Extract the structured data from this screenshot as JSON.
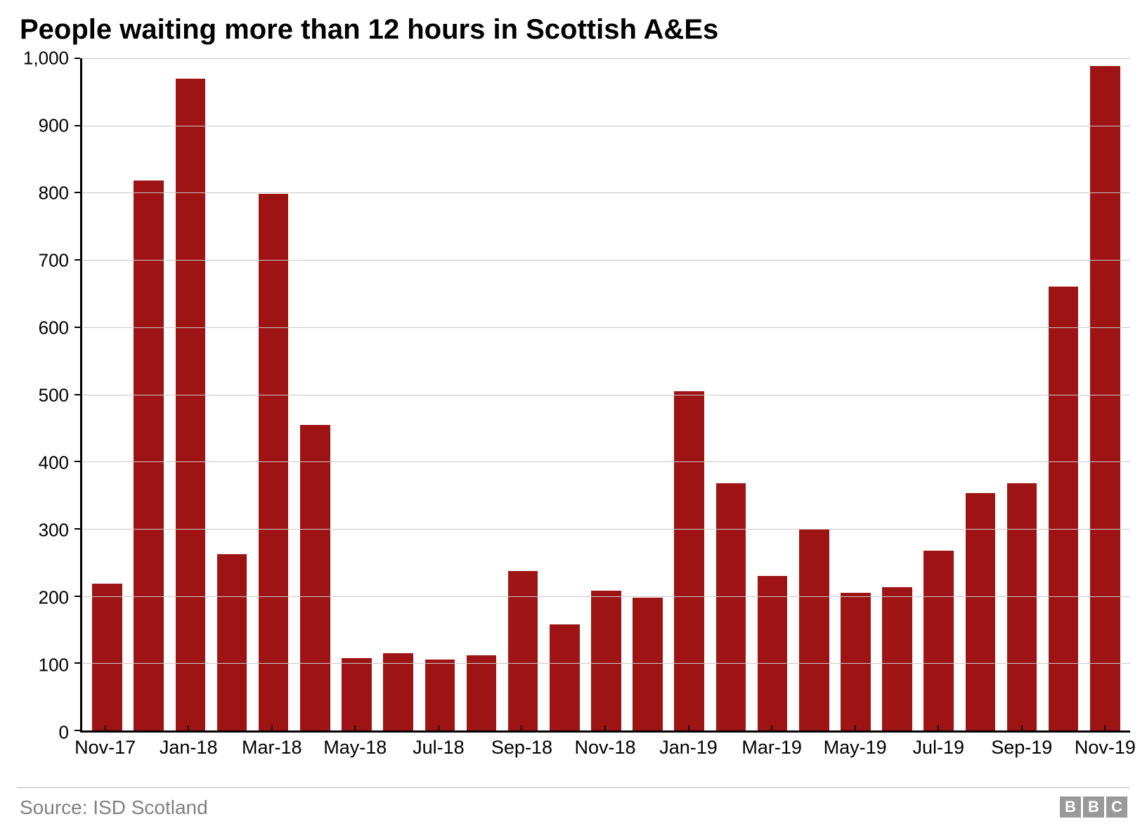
{
  "chart": {
    "type": "bar",
    "title": "People waiting more than 12 hours in Scottish A&Es",
    "title_fontsize": 40,
    "title_fontweight": 700,
    "background_color": "#ffffff",
    "bar_color": "#9e1414",
    "grid_color": "#c7c7c7",
    "axis_color": "#000000",
    "ylim": [
      0,
      1000
    ],
    "ytick_step": 100,
    "yticks": [
      0,
      100,
      200,
      300,
      400,
      500,
      600,
      700,
      800,
      900,
      1000
    ],
    "ytick_labels": [
      "0",
      "100",
      "200",
      "300",
      "400",
      "500",
      "600",
      "700",
      "800",
      "900",
      "1,000"
    ],
    "ylabel_fontsize": 26,
    "xlabel_fontsize": 27,
    "bar_width_ratio": 0.72,
    "categories": [
      "Nov-17",
      "Dec-17",
      "Jan-18",
      "Feb-18",
      "Mar-18",
      "Apr-18",
      "May-18",
      "Jun-18",
      "Jul-18",
      "Aug-18",
      "Sep-18",
      "Oct-18",
      "Nov-18",
      "Dec-18",
      "Jan-19",
      "Feb-19",
      "Mar-19",
      "Apr-19",
      "May-19",
      "Jun-19",
      "Jul-19",
      "Aug-19",
      "Sep-19",
      "Oct-19",
      "Nov-19"
    ],
    "values": [
      218,
      818,
      970,
      262,
      798,
      455,
      108,
      115,
      106,
      112,
      237,
      158,
      208,
      198,
      505,
      368,
      230,
      300,
      205,
      213,
      268,
      353,
      368,
      660,
      988
    ],
    "x_tick_indices": [
      0,
      2,
      4,
      6,
      8,
      10,
      12,
      14,
      16,
      18,
      20,
      22,
      24
    ],
    "x_tick_labels": [
      "Nov-17",
      "Jan-18",
      "Mar-18",
      "May-18",
      "Jul-18",
      "Sep-18",
      "Nov-18",
      "Jan-19",
      "Mar-19",
      "May-19",
      "Jul-19",
      "Sep-19",
      "Nov-19"
    ]
  },
  "footer": {
    "source": "Source: ISD Scotland",
    "source_color": "#808080",
    "source_fontsize": 28,
    "logo_letters": [
      "B",
      "B",
      "C"
    ],
    "logo_box_color": "#999999",
    "logo_text_color": "#ffffff"
  }
}
